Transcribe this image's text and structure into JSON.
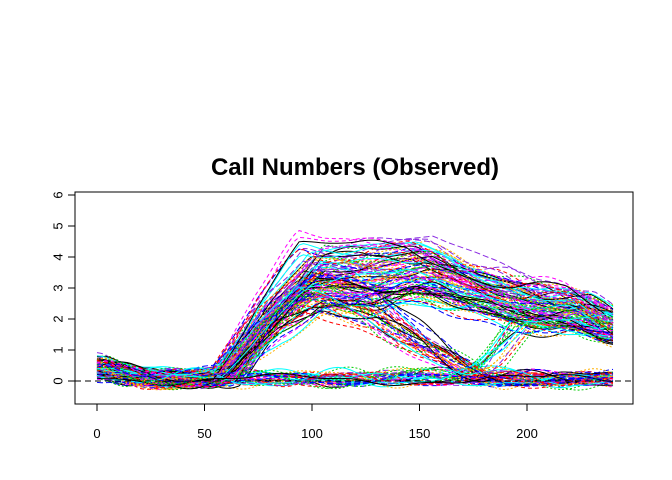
{
  "chart_data": {
    "type": "line",
    "title": "Call Numbers (Observed)",
    "xlabel": "",
    "ylabel": "",
    "xlim": [
      0,
      240
    ],
    "ylim": [
      -0.5,
      6
    ],
    "x_ticks": [
      0,
      50,
      100,
      150,
      200
    ],
    "y_ticks": [
      0,
      1,
      2,
      3,
      4,
      5,
      6
    ],
    "reference_line": {
      "y": 0,
      "style": "dashed",
      "color": "#000000"
    },
    "grid": false,
    "legend": "none",
    "colors": [
      "#000000",
      "#ff0000",
      "#00cd00",
      "#0000ff",
      "#00ffff",
      "#ff00ff",
      "#ffb000",
      "#8a2be2"
    ],
    "series_count": 180,
    "profiles": [
      {
        "group": "high-plateau",
        "description_points": {
          "x": [
            0,
            20,
            50,
            60,
            80,
            100,
            125,
            150,
            175,
            200,
            225,
            240
          ],
          "y": [
            0.5,
            0.1,
            0.1,
            0.2,
            2.2,
            3.7,
            3.6,
            3.8,
            3.1,
            2.6,
            2.4,
            1.8
          ]
        }
      },
      {
        "group": "mid-plateau",
        "description_points": {
          "x": [
            0,
            20,
            50,
            60,
            80,
            100,
            125,
            150,
            175,
            200,
            225,
            240
          ],
          "y": [
            0.5,
            0.1,
            0.1,
            0.2,
            1.8,
            2.9,
            3.0,
            3.3,
            2.8,
            2.3,
            2.1,
            1.6
          ]
        }
      },
      {
        "group": "early-decline",
        "description_points": {
          "x": [
            0,
            20,
            50,
            60,
            80,
            100,
            125,
            150,
            175,
            185,
            200,
            240
          ],
          "y": [
            0.5,
            0.1,
            0.1,
            0.2,
            2.0,
            3.0,
            2.4,
            1.2,
            0.2,
            0.1,
            0.1,
            0.05
          ]
        }
      },
      {
        "group": "late-rise",
        "description_points": {
          "x": [
            0,
            20,
            50,
            100,
            150,
            175,
            185,
            200,
            225,
            240
          ],
          "y": [
            0.4,
            0.1,
            0.1,
            0.1,
            0.15,
            0.2,
            0.8,
            2.2,
            2.3,
            2.0
          ]
        }
      },
      {
        "group": "flat",
        "description_points": {
          "x": [
            0,
            20,
            50,
            100,
            150,
            200,
            240
          ],
          "y": [
            0.4,
            0.1,
            0.05,
            0.1,
            0.1,
            0.05,
            0.1
          ]
        }
      }
    ]
  }
}
